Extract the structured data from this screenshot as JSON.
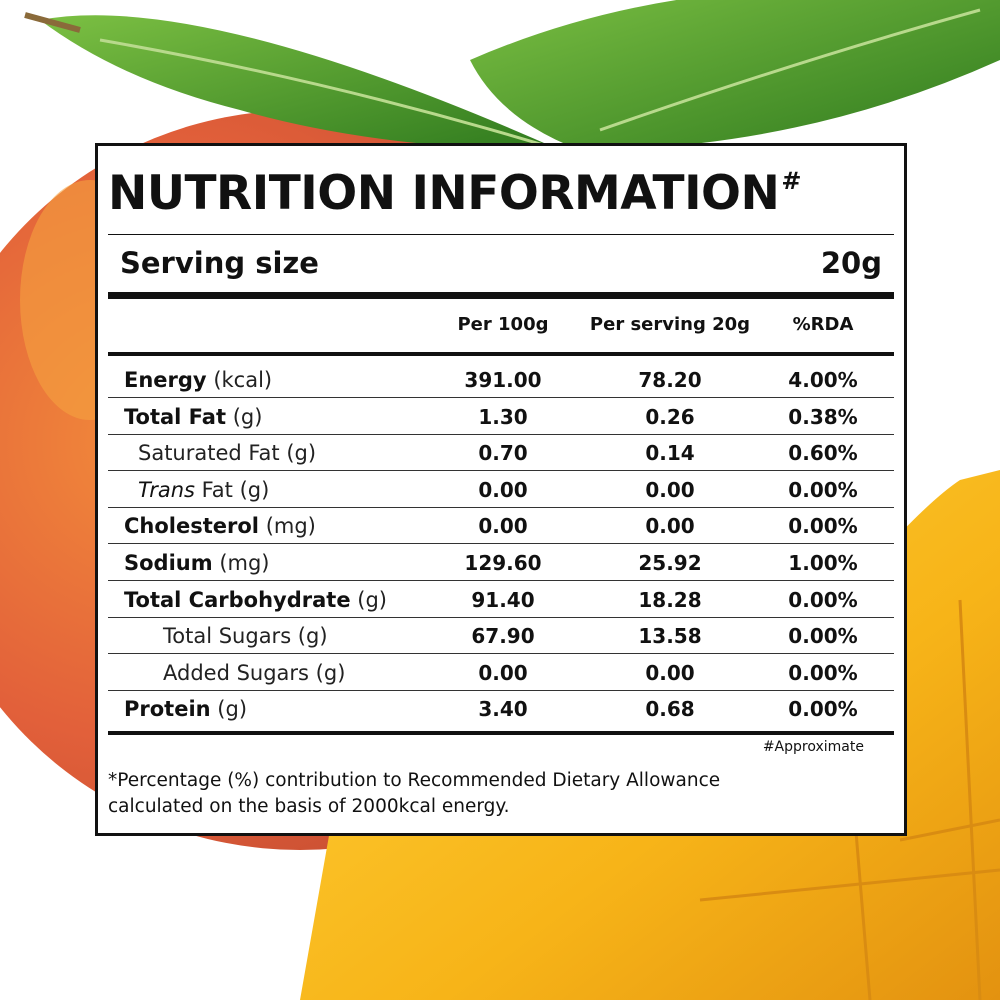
{
  "title": "NUTRITION INFORMATION",
  "title_mark": "#",
  "serving": {
    "label": "Serving size",
    "value": "20g"
  },
  "columns": [
    "Per 100g",
    "Per serving 20g",
    "%RDA"
  ],
  "rows": [
    {
      "name": "Energy",
      "unit": "(kcal)",
      "values": [
        "391.00",
        "78.20",
        "4.00%"
      ]
    },
    {
      "name": "Total Fat",
      "unit": "(g)",
      "values": [
        "1.30",
        "0.26",
        "0.38%"
      ]
    },
    {
      "name": "Saturated Fat (g)",
      "values": [
        "0.70",
        "0.14",
        "0.60%"
      ]
    },
    {
      "name": "Trans",
      "unit": "Fat (g)",
      "values": [
        "0.00",
        "0.00",
        "0.00%"
      ]
    },
    {
      "name": "Cholesterol",
      "unit": "(mg)",
      "values": [
        "0.00",
        "0.00",
        "0.00%"
      ]
    },
    {
      "name": "Sodium",
      "unit": "(mg)",
      "values": [
        "129.60",
        "25.92",
        "1.00%"
      ]
    },
    {
      "name": "Total Carbohydrate",
      "unit": "(g)",
      "values": [
        "91.40",
        "18.28",
        "0.00%"
      ]
    },
    {
      "name": "Total Sugars (g)",
      "values": [
        "67.90",
        "13.58",
        "0.00%"
      ]
    },
    {
      "name": "Added Sugars (g)",
      "values": [
        "0.00",
        "0.00",
        "0.00%"
      ]
    },
    {
      "name": "Protein",
      "unit": "(g)",
      "values": [
        "3.40",
        "0.68",
        "0.00%"
      ]
    }
  ],
  "approximate_note": "#Approximate",
  "footnote": [
    "*Percentage (%) contribution to Recommended Dietary Allowance",
    "calculated on the basis of 2000kcal energy."
  ]
}
